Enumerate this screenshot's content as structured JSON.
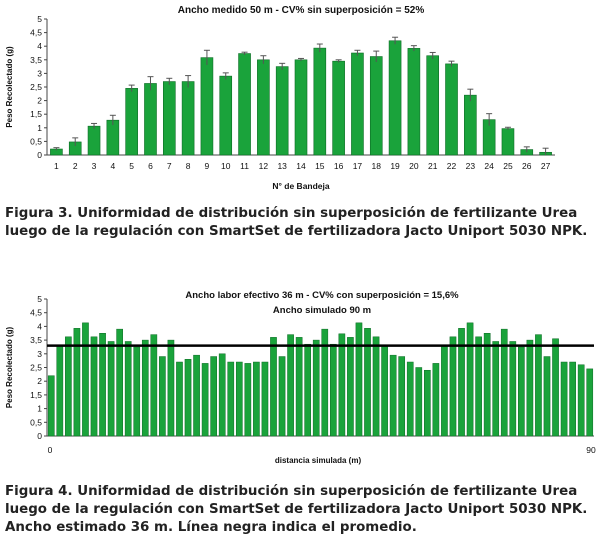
{
  "chart_data": [
    {
      "type": "bar",
      "title": "Ancho medido 50 m - CV% sin superposición = 52%",
      "xlabel": "N° de Bandeja",
      "ylabel": "Peso Recolectado (g)",
      "ylim": [
        0,
        5
      ],
      "yticks": [
        "0",
        "0,5",
        "1",
        "1,5",
        "2",
        "2,5",
        "3",
        "3,5",
        "4",
        "4,5",
        "5"
      ],
      "categories": [
        "1",
        "2",
        "3",
        "4",
        "5",
        "6",
        "7",
        "8",
        "9",
        "10",
        "11",
        "12",
        "13",
        "14",
        "15",
        "16",
        "17",
        "18",
        "19",
        "20",
        "21",
        "22",
        "23",
        "24",
        "25",
        "26",
        "27"
      ],
      "values": [
        0.22,
        0.48,
        1.06,
        1.28,
        2.45,
        2.63,
        2.7,
        2.7,
        3.58,
        2.9,
        3.73,
        3.5,
        3.25,
        3.5,
        3.93,
        3.45,
        3.75,
        3.62,
        4.2,
        3.92,
        3.65,
        3.35,
        2.2,
        1.3,
        0.97,
        0.2,
        0.1
      ],
      "errors": [
        0.05,
        0.15,
        0.1,
        0.18,
        0.12,
        0.25,
        0.12,
        0.22,
        0.27,
        0.12,
        0.05,
        0.15,
        0.12,
        0.05,
        0.15,
        0.05,
        0.1,
        0.2,
        0.13,
        0.1,
        0.12,
        0.1,
        0.22,
        0.22,
        0.05,
        0.1,
        0.15
      ],
      "color": "#1aa33b",
      "grid": false
    },
    {
      "type": "bar",
      "title": "Ancho labor efectivo 36 m - CV% con superposición = 15,6%",
      "subtitle": "Ancho simulado 90 m",
      "xlabel": "distancia simulada (m)",
      "ylabel": "Peso Recolectado (g)",
      "ylim": [
        0,
        5
      ],
      "yticks": [
        "0",
        "0,5",
        "1",
        "1,5",
        "2",
        "2,5",
        "3",
        "3,5",
        "4",
        "4,5",
        "5"
      ],
      "xticks": [
        "0",
        "90"
      ],
      "values": [
        2.2,
        3.3,
        3.62,
        3.93,
        4.13,
        3.62,
        3.75,
        3.45,
        3.9,
        3.45,
        3.25,
        3.5,
        3.7,
        2.9,
        3.5,
        2.7,
        2.8,
        2.95,
        2.65,
        2.9,
        3.0,
        2.7,
        2.7,
        2.65,
        2.7,
        2.7,
        3.6,
        2.9,
        3.7,
        3.6,
        3.35,
        3.5,
        3.9,
        3.35,
        3.73,
        3.6,
        4.13,
        3.93,
        3.62,
        3.3,
        2.95,
        2.9,
        2.7,
        2.5,
        2.4,
        2.65,
        3.3,
        3.62,
        3.93,
        4.13,
        3.62,
        3.75,
        3.45,
        3.9,
        3.45,
        3.25,
        3.5,
        3.7,
        2.9,
        3.55,
        2.7,
        2.7,
        2.6,
        2.45
      ],
      "mean": 3.3,
      "color": "#1aa33b",
      "mean_color": "#000000",
      "grid": false
    }
  ],
  "captions": {
    "figure3": "Figura 3. Uniformidad de distribución sin superposición de fertilizante Urea luego de la regulación con SmartSet de fertilizadora Jacto Uniport 5030 NPK.",
    "figure4": "Figura 4. Uniformidad de distribución sin superposición de fertilizante Urea luego de la regulación con SmartSet de fertilizadora Jacto Uniport 5030 NPK. Ancho estimado 36 m. Línea negra indica el promedio."
  }
}
